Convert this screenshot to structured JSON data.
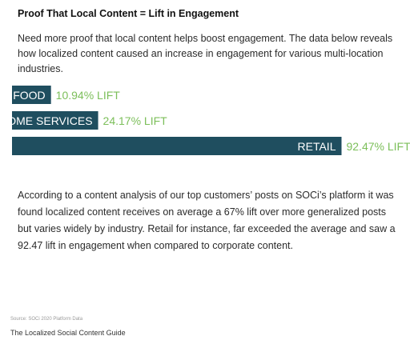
{
  "heading": "Proof That Local Content = Lift in Engagement",
  "intro": "Need more proof that local content helps boost engagement. The data below reveals how localized content caused an increase in engagement for various multi-location industries.",
  "body_text": "According to a content analysis of our top customers’ posts on SOCi’s platform it was found localized content receives on average a 67% lift over more generalized posts but varies widely by industry. Retail for instance, far exceeded the average and saw a 92.47 lift in engagement when compared to corporate content.",
  "source": "Source: SOCi 2020 Platform Data",
  "guide_title": "The Localized Social Content Guide",
  "colors": {
    "bar": "#1f4e5f",
    "bar_label": "#ffffff",
    "value_label": "#7cbf5a"
  },
  "chart_data": {
    "type": "bar",
    "orientation": "horizontal",
    "title": "",
    "xlabel": "",
    "ylabel": "",
    "categories": [
      "FOOD",
      "HOME SERVICES",
      "RETAIL"
    ],
    "values": [
      10.94,
      24.17,
      92.47
    ],
    "value_labels": [
      "10.94% LIFT",
      "24.17% LIFT",
      "92.47% LIFT"
    ],
    "unit": "%",
    "xlim": [
      0,
      100
    ],
    "grid": false,
    "legend": "none"
  }
}
